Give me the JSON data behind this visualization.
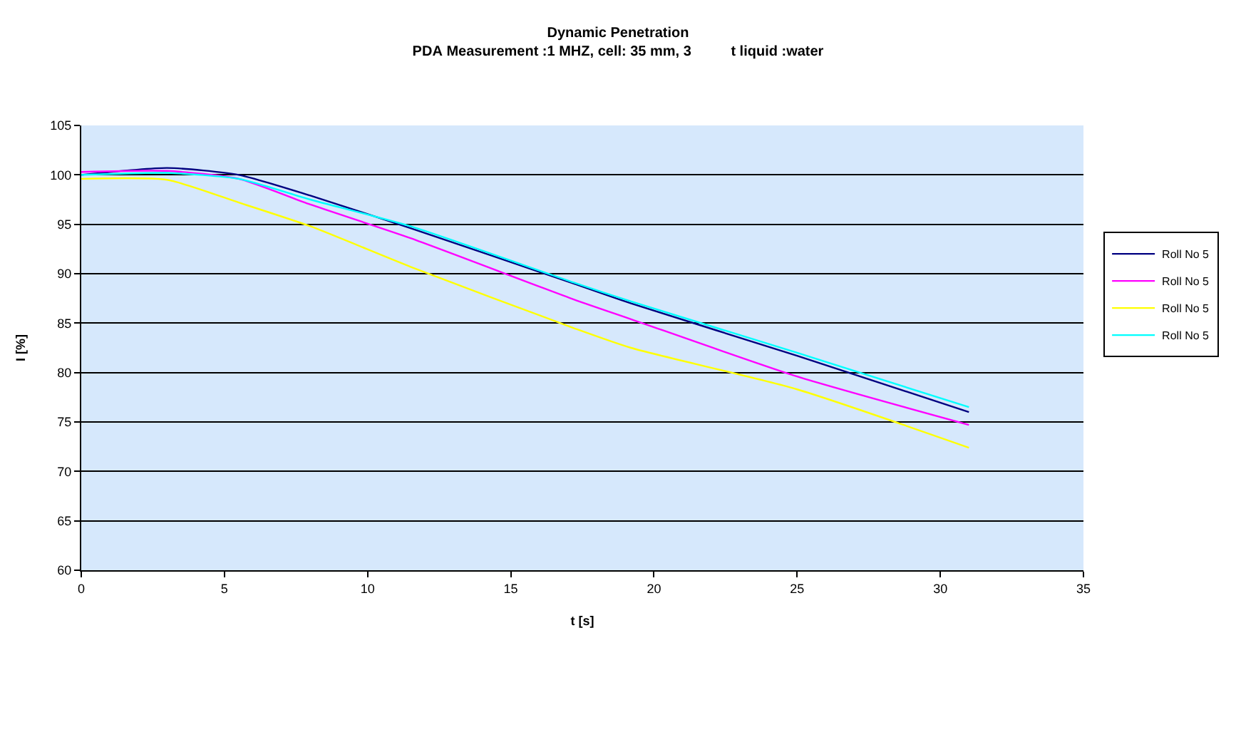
{
  "chart_data": {
    "type": "line",
    "title": "Dynamic Penetration",
    "subtitle": "PDA Measurement :1 MHZ, cell: 35 mm, 3          t liquid :water",
    "xlabel": "t [s]",
    "ylabel": "I [%]",
    "x": [
      0,
      3,
      5.5,
      8,
      11.5,
      17.2,
      19.2,
      25,
      31
    ],
    "series": [
      {
        "name": "Roll No 5",
        "color": "#000080",
        "values": [
          100,
          100.7,
          100,
          97.9,
          94.6,
          89.0,
          87.0,
          81.7,
          76.0
        ]
      },
      {
        "name": "Roll No 5",
        "color": "#ff00ff",
        "values": [
          100.3,
          100.4,
          99.6,
          97.0,
          93.6,
          87.4,
          85.4,
          79.6,
          74.7
        ]
      },
      {
        "name": "Roll No 5",
        "color": "#ffff00",
        "values": [
          99.6,
          99.5,
          97.2,
          94.8,
          90.7,
          84.5,
          82.5,
          78.3,
          72.4
        ]
      },
      {
        "name": "Roll No 5",
        "color": "#00ffff",
        "values": [
          100,
          100.2,
          99.6,
          97.5,
          94.8,
          89.1,
          87.2,
          82.0,
          76.5
        ]
      }
    ],
    "xlim": [
      0,
      35
    ],
    "xticks": [
      0,
      5,
      10,
      15,
      20,
      25,
      30,
      35
    ],
    "ylim": [
      60,
      105
    ],
    "yticks": [
      60,
      65,
      70,
      75,
      80,
      85,
      90,
      95,
      100,
      105
    ],
    "grid": "y",
    "legend": "right",
    "marker": "none",
    "line_style": "solid"
  }
}
